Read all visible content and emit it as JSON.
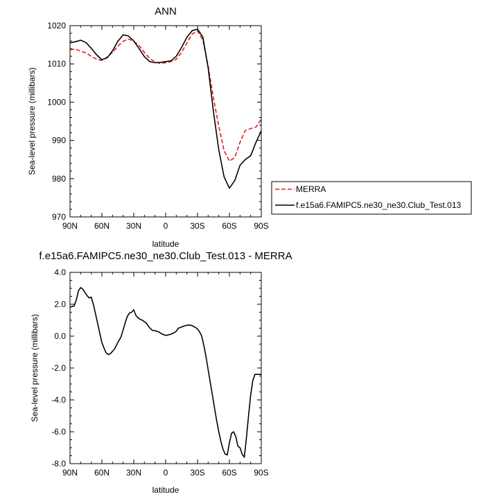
{
  "chart_data": [
    {
      "type": "line",
      "title": "ANN",
      "xlabel": "latitude",
      "ylabel": "Sea-level pressure (millibars)",
      "xlim": [
        90,
        -90
      ],
      "ylim": [
        970,
        1020
      ],
      "x_tick_values": [
        90,
        60,
        30,
        0,
        -30,
        -60,
        -90
      ],
      "x_tick_labels": [
        "90N",
        "60N",
        "30N",
        "0",
        "30S",
        "60S",
        "90S"
      ],
      "y_tick_values": [
        970,
        980,
        990,
        1000,
        1010,
        1020
      ],
      "y_tick_labels": [
        "970",
        "980",
        "990",
        "1000",
        "1010",
        "1020"
      ],
      "grid": false,
      "legend_position": "right",
      "x": [
        90,
        85,
        80,
        75,
        70,
        65,
        60,
        55,
        50,
        45,
        40,
        35,
        30,
        25,
        20,
        15,
        10,
        5,
        0,
        -5,
        -10,
        -15,
        -20,
        -25,
        -30,
        -35,
        -40,
        -45,
        -50,
        -55,
        -60,
        -65,
        -70,
        -75,
        -80,
        -85,
        -90
      ],
      "series": [
        {
          "name": "MERRA",
          "color": "#e8191d",
          "dash": "dashed",
          "values": [
            1013.7,
            1013.9,
            1013.3,
            1012.9,
            1012.0,
            1011.2,
            1010.9,
            1011.8,
            1013.0,
            1014.6,
            1015.9,
            1016.5,
            1015.9,
            1014.8,
            1013.0,
            1011.4,
            1010.5,
            1010.1,
            1010.3,
            1010.6,
            1011.2,
            1013.0,
            1015.5,
            1017.8,
            1018.6,
            1016.2,
            1009.5,
            1001.0,
            993.7,
            987.3,
            984.6,
            985.5,
            989.5,
            992.6,
            993.1,
            993.5,
            995.5
          ]
        },
        {
          "name": "f.e15a6.FAMIPC5.ne30_ne30.Club_Test.013",
          "color": "#000000",
          "dash": "solid",
          "values": [
            1015.5,
            1015.8,
            1016.2,
            1015.6,
            1014.1,
            1012.4,
            1011.1,
            1011.6,
            1013.4,
            1015.9,
            1017.6,
            1017.3,
            1016.0,
            1014.0,
            1011.9,
            1010.6,
            1010.3,
            1010.4,
            1010.6,
            1010.8,
            1012.0,
            1014.3,
            1017.0,
            1018.7,
            1019.1,
            1017.0,
            1009.0,
            997.5,
            987.5,
            980.5,
            977.5,
            979.5,
            983.5,
            985.0,
            986.0,
            989.5,
            992.5
          ]
        }
      ]
    },
    {
      "type": "line",
      "title": "f.e15a6.FAMIPC5.ne30_ne30.Club_Test.013 - MERRA",
      "xlabel": "latitude",
      "ylabel": "Sea-level pressure (millibars)",
      "xlim": [
        90,
        -90
      ],
      "ylim": [
        -8,
        4
      ],
      "x_tick_values": [
        90,
        60,
        30,
        0,
        -30,
        -60,
        -90
      ],
      "x_tick_labels": [
        "90N",
        "60N",
        "30N",
        "0",
        "30S",
        "60S",
        "90S"
      ],
      "y_tick_values": [
        4,
        2,
        0,
        -2,
        -4,
        -6,
        -8
      ],
      "y_tick_labels": [
        "4.0",
        "2.0",
        "0.0",
        "-2.0",
        "-4.0",
        "-6.0",
        "-8.0"
      ],
      "grid": false,
      "x": [
        90,
        86,
        84,
        82,
        80,
        78,
        76,
        74,
        72,
        70,
        68,
        66,
        64,
        62,
        60,
        58,
        56,
        54,
        52,
        50,
        48,
        45,
        42,
        40,
        38,
        36,
        34,
        32,
        30,
        28,
        26,
        24,
        22,
        20,
        18,
        16,
        14,
        12,
        10,
        8,
        6,
        4,
        2,
        0,
        -2,
        -4,
        -6,
        -8,
        -10,
        -12,
        -14,
        -16,
        -18,
        -20,
        -22,
        -24,
        -26,
        -28,
        -30,
        -32,
        -34,
        -36,
        -38,
        -40,
        -42,
        -44,
        -46,
        -48,
        -50,
        -52,
        -54,
        -56,
        -58,
        -60,
        -62,
        -64,
        -66,
        -68,
        -70,
        -72,
        -74,
        -76,
        -78,
        -80,
        -82,
        -84,
        -86,
        -88,
        -90
      ],
      "series": [
        {
          "color": "#000000",
          "dash": "solid",
          "values": [
            1.82,
            1.9,
            2.3,
            2.85,
            3.05,
            2.95,
            2.75,
            2.55,
            2.4,
            2.45,
            2.0,
            1.4,
            0.8,
            0.2,
            -0.4,
            -0.75,
            -1.05,
            -1.15,
            -1.1,
            -0.95,
            -0.8,
            -0.4,
            -0.05,
            0.4,
            0.85,
            1.25,
            1.45,
            1.5,
            1.65,
            1.3,
            1.15,
            1.05,
            1.0,
            0.9,
            0.8,
            0.6,
            0.45,
            0.35,
            0.35,
            0.3,
            0.25,
            0.15,
            0.1,
            0.05,
            0.07,
            0.1,
            0.15,
            0.22,
            0.3,
            0.5,
            0.55,
            0.6,
            0.65,
            0.68,
            0.7,
            0.68,
            0.62,
            0.55,
            0.45,
            0.25,
            0.0,
            -0.6,
            -1.3,
            -2.1,
            -2.9,
            -3.7,
            -4.5,
            -5.3,
            -6.0,
            -6.6,
            -7.1,
            -7.4,
            -7.45,
            -6.7,
            -6.1,
            -6.0,
            -6.3,
            -6.9,
            -7.0,
            -7.4,
            -7.6,
            -6.4,
            -5.0,
            -3.7,
            -2.8,
            -2.4,
            -2.4,
            -2.4,
            -2.4
          ]
        }
      ]
    }
  ]
}
